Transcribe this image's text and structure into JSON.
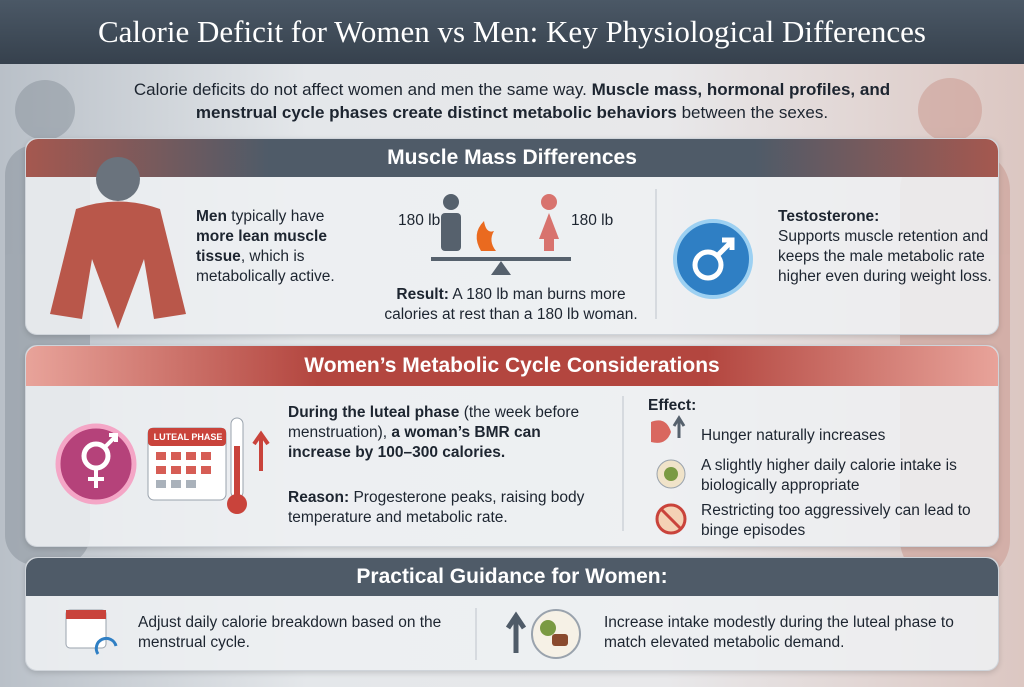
{
  "title": "Calorie Deficit for Women vs Men: Key Physiological Differences",
  "intro": [
    "Calorie deficits do not affect women and men the same way. ",
    "Muscle mass, hormonal profiles, and menstrual cycle phases create distinct metabolic behaviors",
    " between the sexes."
  ],
  "muscle": {
    "heading": "Muscle Mass Differences",
    "men_text": [
      "Men",
      " typically have ",
      "more lean muscle tissue",
      ", which is metabolically active."
    ],
    "scale_left": "180 lb",
    "scale_right": "180 lb",
    "result": [
      "Result:",
      " A 180 lb man burns more calories at rest than a 180 lb woman."
    ],
    "testosterone": [
      "Testosterone:",
      "Supports muscle retention and keeps the male metabolic rate higher even during weight loss."
    ]
  },
  "cycle": {
    "heading": "Women’s Metabolic Cycle Considerations",
    "calendar_label": "LUTEAL PHASE",
    "luteal": [
      "During the luteal phase",
      " (the week before menstruation), ",
      "a woman’s BMR can increase by 100–300 calories."
    ],
    "reason": [
      "Reason:",
      " Progesterone peaks, raising body temperature and metabolic rate."
    ],
    "effect_heading": "Effect:",
    "effects": [
      "Hunger naturally increases",
      "A slightly higher daily calorie intake is biologically appropriate",
      "Restricting too aggressively can lead to binge episodes"
    ]
  },
  "guidance": {
    "heading": "Practical Guidance for Women:",
    "items": [
      "Adjust daily calorie breakdown based on the menstrual cycle.",
      "Increase intake modestly during the luteal phase to match elevated metabolic demand."
    ]
  }
}
